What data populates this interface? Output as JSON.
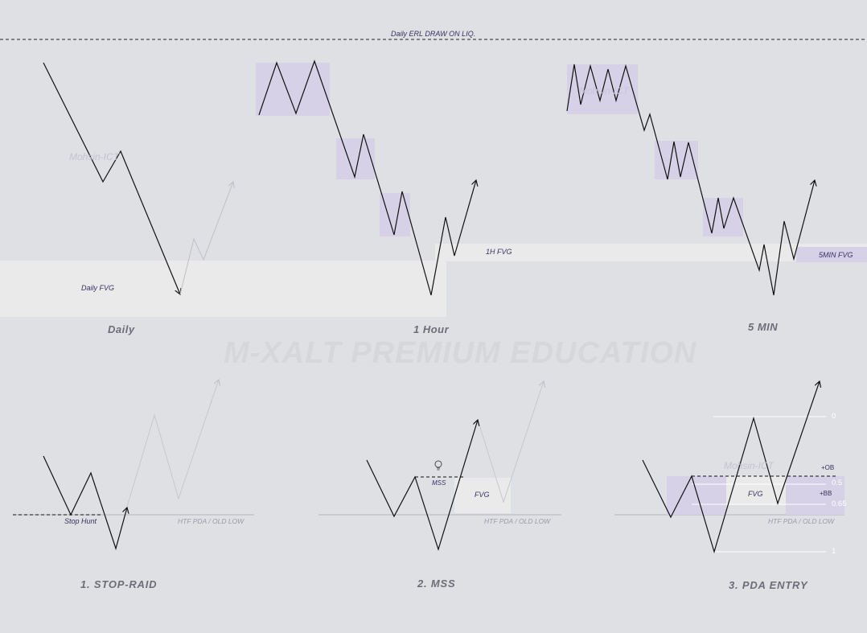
{
  "colors": {
    "background": "#dfe0e4",
    "fvg_zone": "#eaeaeb",
    "pd_array_box": "#d6d1e6",
    "price_line": "#111111",
    "faded_line": "#c2c2c8"
  },
  "top_line_label": "Daily ERL DRAW ON LIQ.",
  "panels": {
    "daily": {
      "title": "Daily",
      "fvg_label": "Daily FVG",
      "watermark": "Mohsin-ICT"
    },
    "hour": {
      "title": "1 Hour",
      "fvg_label": "1H FVG"
    },
    "min5": {
      "title": "5 MIN",
      "fvg_label": "5MIN FVG",
      "watermark": "Mohsin-ICT"
    }
  },
  "center_watermark": "M-XALT PREMIUM EDUCATION",
  "steps": {
    "stop_raid": {
      "title": "1. STOP-RAID",
      "stop_hunt": "Stop Hunt",
      "htf": "HTF PDA  /  OLD LOW"
    },
    "mss": {
      "title": "2. MSS",
      "mss_label": "MSS",
      "fvg_label": "FVG",
      "htf": "HTF PDA  /  OLD LOW",
      "icon": "lightbulb-icon"
    },
    "pda_entry": {
      "title": "3. PDA ENTRY",
      "fvg_label": "FVG",
      "htf": "HTF PDA  /  OLD LOW",
      "watermark": "Mohsin-ICT",
      "fib_0": "0",
      "fib_05": "0.5",
      "fib_065": "0.65",
      "fib_1": "1",
      "ob_label": "+OB",
      "bb_label": "+BB"
    }
  }
}
